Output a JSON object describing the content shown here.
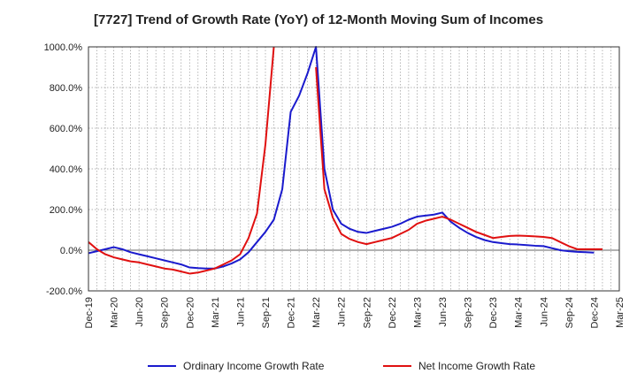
{
  "chart_data": {
    "type": "line",
    "title": "[7727]  Trend of Growth Rate (YoY) of 12-Month Moving Sum of Incomes",
    "xlabel": "",
    "ylabel": "",
    "ylim": [
      -200,
      1000
    ],
    "yticks": [
      -200,
      0,
      200,
      400,
      600,
      800,
      1000
    ],
    "ytick_labels": [
      "-200.0%",
      "0.0%",
      "200.0%",
      "400.0%",
      "600.0%",
      "800.0%",
      "1000.0%"
    ],
    "xtick_labels": [
      "Dec-19",
      "Mar-20",
      "Jun-20",
      "Sep-20",
      "Dec-20",
      "Mar-21",
      "Jun-21",
      "Sep-21",
      "Dec-21",
      "Mar-22",
      "Jun-22",
      "Sep-22",
      "Dec-22",
      "Mar-23",
      "Jun-23",
      "Sep-23",
      "Dec-23",
      "Mar-24",
      "Jun-24",
      "Sep-24",
      "Dec-24",
      "Mar-25"
    ],
    "months": [
      "2019-12",
      "2020-01",
      "2020-02",
      "2020-03",
      "2020-04",
      "2020-05",
      "2020-06",
      "2020-07",
      "2020-08",
      "2020-09",
      "2020-10",
      "2020-11",
      "2020-12",
      "2021-01",
      "2021-02",
      "2021-03",
      "2021-04",
      "2021-05",
      "2021-06",
      "2021-07",
      "2021-08",
      "2021-09",
      "2021-10",
      "2021-11",
      "2021-12",
      "2022-01",
      "2022-02",
      "2022-03",
      "2022-04",
      "2022-05",
      "2022-06",
      "2022-07",
      "2022-08",
      "2022-09",
      "2022-10",
      "2022-11",
      "2022-12",
      "2023-01",
      "2023-02",
      "2023-03",
      "2023-04",
      "2023-05",
      "2023-06",
      "2023-07",
      "2023-08",
      "2023-09",
      "2023-10",
      "2023-11",
      "2023-12",
      "2024-01",
      "2024-02",
      "2024-03",
      "2024-04",
      "2024-05",
      "2024-06",
      "2024-07",
      "2024-08",
      "2024-09",
      "2024-10",
      "2024-11",
      "2024-12",
      "2025-01",
      "2025-02",
      "2025-03"
    ],
    "grid": true,
    "legend_position": "bottom",
    "series": [
      {
        "name": "Ordinary Income Growth Rate",
        "color": "#1a1acd",
        "values": [
          -15,
          -5,
          5,
          15,
          5,
          -10,
          -20,
          -30,
          -40,
          -50,
          -60,
          -70,
          -85,
          -88,
          -90,
          -90,
          -80,
          -65,
          -45,
          -10,
          40,
          90,
          150,
          300,
          680,
          760,
          870,
          1050,
          400,
          200,
          130,
          105,
          90,
          85,
          95,
          105,
          115,
          130,
          150,
          165,
          170,
          175,
          185,
          140,
          110,
          85,
          65,
          50,
          40,
          35,
          30,
          28,
          25,
          22,
          20,
          10,
          0,
          -5,
          -8,
          -10,
          -12,
          null,
          null,
          null
        ]
      },
      {
        "name": "Net Income Growth Rate",
        "color": "#e01010",
        "values": [
          40,
          5,
          -20,
          -35,
          -45,
          -55,
          -60,
          -70,
          -80,
          -90,
          -95,
          -105,
          -115,
          -110,
          -100,
          -90,
          -70,
          -50,
          -20,
          60,
          180,
          520,
          null,
          null,
          null,
          null,
          null,
          null,
          null,
          null,
          null,
          null,
          null,
          null,
          null,
          null,
          null,
          null,
          null,
          null,
          null,
          null,
          null,
          null,
          null,
          null,
          null,
          null,
          null,
          null,
          null,
          null,
          null,
          null,
          null,
          null,
          null,
          null,
          null,
          null,
          null,
          null,
          null,
          null
        ],
        "segments": [
          {
            "start": 0,
            "values": [
              40,
              5,
              -20,
              -35,
              -45,
              -55,
              -60,
              -70,
              -80,
              -90,
              -95,
              -105,
              -115,
              -110,
              -100,
              -90,
              -70,
              -50,
              -20,
              60,
              180,
              520,
              1050
            ]
          },
          {
            "start": 27,
            "values": [
              900,
              300,
              160,
              80,
              55,
              40,
              30,
              40,
              50,
              60,
              80,
              100,
              130,
              145,
              155,
              165,
              150,
              130,
              110,
              90,
              75,
              60,
              65,
              70,
              72,
              70,
              68,
              65,
              60,
              40,
              20,
              5,
              5,
              5,
              5
            ]
          }
        ]
      }
    ]
  },
  "legend": {
    "ordinary_label": "Ordinary Income Growth Rate",
    "net_label": "Net Income Growth Rate"
  }
}
